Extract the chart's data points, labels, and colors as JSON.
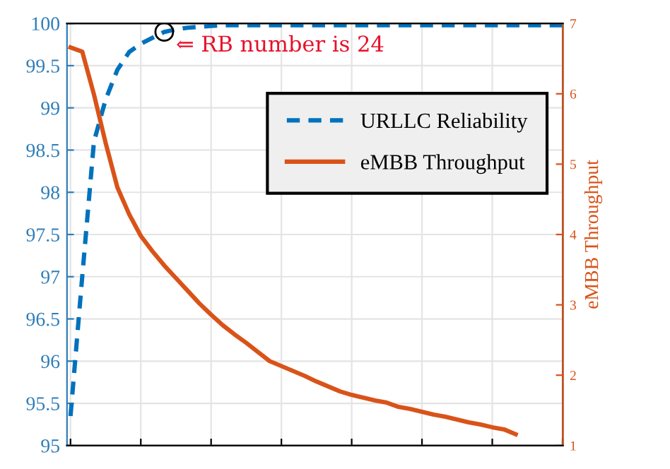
{
  "chart_data": {
    "type": "line",
    "categories": [
      null,
      null,
      null,
      null,
      null,
      null,
      null,
      null,
      null,
      null,
      null,
      null,
      null,
      null,
      null,
      null,
      null,
      null,
      null,
      null,
      null,
      null,
      null,
      null,
      null,
      null,
      null,
      null,
      null,
      null,
      null,
      null,
      null,
      null,
      null,
      null,
      null,
      null,
      null,
      null,
      null,
      null,
      null
    ],
    "series": [
      {
        "name": "URLLC Reliability",
        "color": "#0072bd",
        "line_style": "dashed",
        "values": [
          95.35,
          97.0,
          98.6,
          99.1,
          99.45,
          99.66,
          99.76,
          99.83,
          99.9,
          99.93,
          99.95,
          99.96,
          99.97,
          99.98,
          99.98,
          99.98,
          99.98,
          99.98,
          99.98,
          99.98,
          99.98,
          99.98,
          99.98,
          99.98,
          99.98,
          99.98,
          99.98,
          99.98,
          99.98,
          99.98,
          99.98,
          99.98,
          99.98,
          99.98,
          99.98,
          99.98,
          99.98,
          99.98,
          99.98,
          99.98,
          99.98,
          99.98,
          99.98
        ]
      },
      {
        "name": "eMBB Throughput",
        "color": "#d95319",
        "axis": "y2",
        "line_style": "solid",
        "values": [
          6.66,
          6.6,
          5.99,
          5.3,
          4.67,
          4.29,
          3.98,
          3.76,
          3.56,
          3.38,
          3.2,
          3.02,
          2.86,
          2.71,
          2.58,
          2.46,
          2.33,
          2.2,
          2.13,
          2.06,
          1.99,
          1.91,
          1.84,
          1.77,
          1.72,
          1.68,
          1.64,
          1.61,
          1.55,
          1.52,
          1.48,
          1.44,
          1.41,
          1.37,
          1.33,
          1.3,
          1.26,
          1.23,
          1.16,
          null,
          null,
          null,
          null
        ]
      },
      {
        "type": "scatter",
        "color": "#000000",
        "marker": "circle",
        "values": [
          null,
          null,
          null,
          null,
          null,
          null,
          null,
          null,
          99.9,
          null,
          null,
          null,
          null,
          null,
          null,
          null,
          null,
          null,
          null,
          null,
          null,
          null,
          null,
          null,
          null,
          null,
          null,
          null,
          null,
          null,
          null,
          null,
          null,
          null,
          null,
          null,
          null,
          null,
          null,
          null,
          null,
          null,
          null
        ]
      }
    ],
    "ylim": [
      95,
      100
    ],
    "yticks": [
      95,
      95.5,
      96,
      96.5,
      97,
      97.5,
      98,
      98.5,
      99,
      99.5,
      100
    ],
    "y2lim": [
      1,
      7
    ],
    "y2ticks": [
      1,
      2,
      3,
      4,
      5,
      6,
      7
    ],
    "y2label": "eMBB Throughput",
    "annotations": [
      "⇐ RB number is 24"
    ],
    "grid": true,
    "legend": "top right"
  }
}
